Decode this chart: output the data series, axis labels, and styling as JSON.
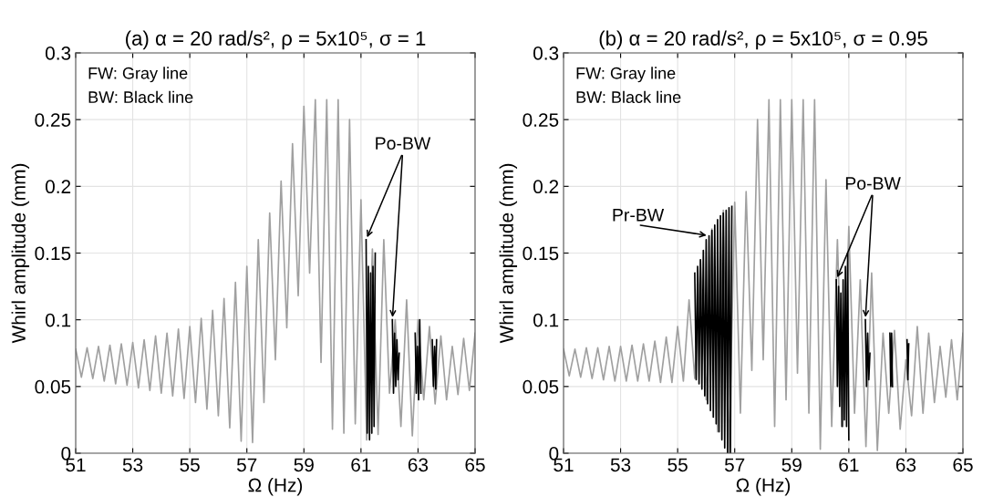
{
  "chart_data": [
    {
      "type": "line",
      "title": "(a) α = 20 rad/s², ρ = 5x10⁵, σ = 1",
      "xlabel": "Ω (Hz)",
      "ylabel": "Whirl amplitude (mm)",
      "xlim": [
        51,
        65
      ],
      "xticks": [
        51,
        53,
        55,
        57,
        59,
        61,
        63,
        65
      ],
      "ylim": [
        0,
        0.3
      ],
      "yticks": [
        0,
        0.05,
        0.1,
        0.15,
        0.2,
        0.25,
        0.3
      ],
      "grid": true,
      "annotations": [
        "FW: Gray line",
        "BW: Black line",
        {
          "text": "Po-BW",
          "x": 61.18,
          "y": 0.16
        }
      ],
      "series": [
        {
          "color": "#a0a0a0",
          "x": [
            51.0,
            51.2,
            51.4,
            51.6,
            51.8,
            52.0,
            52.2,
            52.4,
            52.6,
            52.8,
            53.0,
            53.2,
            53.4,
            53.6,
            53.8,
            54.0,
            54.2,
            54.4,
            54.6,
            54.8,
            55.0,
            55.2,
            55.4,
            55.6,
            55.8,
            56.0,
            56.2,
            56.4,
            56.6,
            56.8,
            57.0,
            57.2,
            57.4,
            57.6,
            57.8,
            58.0,
            58.2,
            58.4,
            58.6,
            58.8,
            59.0,
            59.2,
            59.4,
            59.6,
            59.8,
            60.0,
            60.2,
            60.4,
            60.6,
            60.8,
            61.0,
            61.2,
            61.4,
            61.6,
            61.8,
            62.0,
            62.2,
            62.4,
            62.6,
            62.8,
            63.0,
            63.2,
            63.4,
            63.6,
            63.8,
            64.0,
            64.2,
            64.4,
            64.6,
            64.8,
            65.0
          ],
          "values": [
            0.078,
            0.057,
            0.079,
            0.056,
            0.08,
            0.054,
            0.081,
            0.052,
            0.082,
            0.051,
            0.083,
            0.049,
            0.085,
            0.047,
            0.088,
            0.045,
            0.09,
            0.043,
            0.093,
            0.041,
            0.095,
            0.038,
            0.101,
            0.033,
            0.107,
            0.028,
            0.116,
            0.019,
            0.128,
            0.009,
            0.14,
            0.008,
            0.16,
            0.038,
            0.18,
            0.07,
            0.204,
            0.094,
            0.232,
            0.118,
            0.26,
            0.135,
            0.265,
            0.068,
            0.265,
            0.018,
            0.265,
            0.015,
            0.25,
            0.022,
            0.19,
            0.01,
            0.153,
            0.014,
            0.16,
            0.045,
            0.1,
            0.02,
            0.115,
            0.013,
            0.1,
            0.04,
            0.095,
            0.037,
            0.088,
            0.04,
            0.08,
            0.044,
            0.086,
            0.047,
            0.09
          ]
        },
        {
          "color": "#000000",
          "x": [
            61.18,
            61.22,
            61.26,
            61.3,
            61.34,
            61.38,
            61.42,
            61.46,
            61.5
          ],
          "values": [
            0.16,
            0.015,
            0.14,
            0.01,
            0.135,
            0.015,
            0.14,
            0.02,
            0.15
          ]
        },
        {
          "color": "#000000",
          "x": [
            62.1,
            62.14,
            62.18,
            62.22,
            62.26,
            62.3,
            62.34
          ],
          "values": [
            0.1,
            0.045,
            0.09,
            0.05,
            0.085,
            0.055,
            0.075
          ]
        },
        {
          "color": "#000000",
          "x": [
            62.9,
            62.94,
            62.98,
            63.02,
            63.06,
            63.1
          ],
          "values": [
            0.09,
            0.045,
            0.08,
            0.04,
            0.1,
            0.045
          ]
        },
        {
          "color": "#000000",
          "x": [
            63.5,
            63.54,
            63.58,
            63.62,
            63.65
          ],
          "values": [
            0.085,
            0.05,
            0.08,
            0.048,
            0.085
          ]
        }
      ]
    },
    {
      "type": "line",
      "title": "(b) α = 20 rad/s², ρ = 5x10⁵, σ = 0.95",
      "xlabel": "Ω (Hz)",
      "ylabel": "Whirl amplitude (mm)",
      "xlim": [
        51,
        65
      ],
      "xticks": [
        51,
        53,
        55,
        57,
        59,
        61,
        63,
        65
      ],
      "ylim": [
        0,
        0.3
      ],
      "yticks": [
        0,
        0.05,
        0.1,
        0.15,
        0.2,
        0.25,
        0.3
      ],
      "grid": true,
      "annotations": [
        "FW: Gray line",
        "BW: Black line",
        {
          "text": "Pr-BW",
          "x": 56.1,
          "y": 0.163
        },
        {
          "text": "Po-BW",
          "x": 60.56,
          "y": 0.13
        }
      ],
      "series": [
        {
          "color": "#a0a0a0",
          "x": [
            51.0,
            51.2,
            51.4,
            51.6,
            51.8,
            52.0,
            52.2,
            52.4,
            52.6,
            52.8,
            53.0,
            53.2,
            53.4,
            53.6,
            53.8,
            54.0,
            54.2,
            54.4,
            54.6,
            54.8,
            55.0,
            55.2,
            55.4,
            55.6,
            55.8,
            56.0,
            56.2,
            56.4,
            56.6,
            56.8,
            57.0,
            57.2,
            57.4,
            57.6,
            57.8,
            58.0,
            58.2,
            58.4,
            58.6,
            58.8,
            59.0,
            59.2,
            59.4,
            59.6,
            59.8,
            60.0,
            60.2,
            60.4,
            60.6,
            60.8,
            61.0,
            61.2,
            61.4,
            61.6,
            61.8,
            62.0,
            62.2,
            62.4,
            62.6,
            62.8,
            63.0,
            63.2,
            63.4,
            63.6,
            63.8,
            64.0,
            64.2,
            64.4,
            64.6,
            64.8,
            65.0
          ],
          "values": [
            0.078,
            0.058,
            0.078,
            0.057,
            0.079,
            0.056,
            0.079,
            0.055,
            0.08,
            0.054,
            0.08,
            0.054,
            0.081,
            0.054,
            0.082,
            0.054,
            0.084,
            0.053,
            0.087,
            0.053,
            0.095,
            0.054,
            0.115,
            0.056,
            0.145,
            0.04,
            0.168,
            0.016,
            0.182,
            0.0,
            0.188,
            0.03,
            0.196,
            0.062,
            0.25,
            0.07,
            0.265,
            0.02,
            0.265,
            0.04,
            0.265,
            0.06,
            0.265,
            0.03,
            0.265,
            0.003,
            0.205,
            0.02,
            0.16,
            0.02,
            0.17,
            0.03,
            0.13,
            0.005,
            0.135,
            0.002,
            0.09,
            0.03,
            0.092,
            0.018,
            0.07,
            0.028,
            0.095,
            0.03,
            0.09,
            0.038,
            0.08,
            0.042,
            0.085,
            0.04,
            0.09
          ]
        },
        {
          "color": "#000000",
          "x": [
            55.6,
            55.65,
            55.7,
            55.75,
            55.8,
            55.85,
            55.9,
            55.95,
            56.0,
            56.05,
            56.1,
            56.15,
            56.2,
            56.25,
            56.3,
            56.35,
            56.4,
            56.45,
            56.5,
            56.55,
            56.6,
            56.65,
            56.7,
            56.75,
            56.8,
            56.85,
            56.9
          ],
          "values": [
            0.135,
            0.055,
            0.14,
            0.052,
            0.145,
            0.048,
            0.152,
            0.043,
            0.16,
            0.037,
            0.163,
            0.032,
            0.167,
            0.027,
            0.171,
            0.022,
            0.175,
            0.016,
            0.178,
            0.01,
            0.18,
            0.004,
            0.182,
            0.0,
            0.184,
            0.0,
            0.185
          ]
        },
        {
          "color": "#000000",
          "x": [
            60.56,
            60.6,
            60.64,
            60.68,
            60.72,
            60.76,
            60.8,
            60.84,
            60.88,
            60.92,
            60.96,
            61.0
          ],
          "values": [
            0.13,
            0.05,
            0.125,
            0.035,
            0.12,
            0.02,
            0.13,
            0.025,
            0.14,
            0.02,
            0.15,
            0.01
          ]
        },
        {
          "color": "#000000",
          "x": [
            61.58,
            61.62,
            61.66,
            61.7,
            61.74
          ],
          "values": [
            0.1,
            0.05,
            0.09,
            0.055,
            0.075
          ]
        },
        {
          "color": "#000000",
          "x": [
            62.44,
            62.47,
            62.5,
            62.53
          ],
          "values": [
            0.09,
            0.05,
            0.09,
            0.05
          ]
        },
        {
          "color": "#000000",
          "x": [
            63.04,
            63.07,
            63.1
          ],
          "values": [
            0.085,
            0.055,
            0.082
          ]
        }
      ]
    }
  ]
}
